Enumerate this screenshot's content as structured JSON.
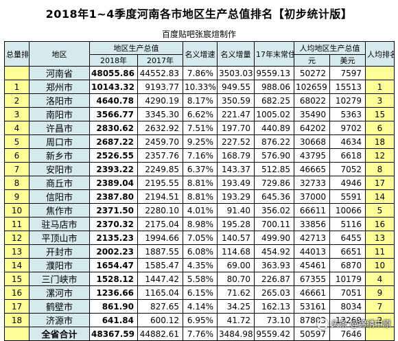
{
  "title": "2018年1~4季度河南各市地区生产总值排名【初步统计版】",
  "subtitle": "百度贴吧张宸煊制作",
  "headers": {
    "rank": "总量排名",
    "region": "地区",
    "gdp": "地区生产总值",
    "y2018": "2018年",
    "y2017": "2017年",
    "nominal_growth": "名义增速",
    "nominal_increase": "名义增量",
    "population": "17年末常住人口",
    "per_capita": "人均地区生产总值",
    "per_capita_yuan": "元",
    "per_capita_usd": "美元",
    "per_capita_rank": "人均排名"
  },
  "rows": [
    {
      "rank": "",
      "region": "河南省",
      "y2018": "48055.86",
      "y2017": "44552.83",
      "growth": "7.86%",
      "increase": "3503.03",
      "population": "9559.13",
      "pc_yuan": "50272",
      "pc_usd": "7597",
      "pc_rank": ""
    },
    {
      "rank": "1",
      "region": "郑州市",
      "y2018": "10143.32",
      "y2017": "9193.77",
      "growth": "10.33%",
      "increase": "949.55",
      "population": "988.06",
      "pc_yuan": "102659",
      "pc_usd": "15513",
      "pc_rank": "1"
    },
    {
      "rank": "2",
      "region": "洛阳市",
      "y2018": "4640.78",
      "y2017": "4290.19",
      "growth": "8.17%",
      "increase": "350.59",
      "population": "682.25",
      "pc_yuan": "68022",
      "pc_usd": "10279",
      "pc_rank": "3"
    },
    {
      "rank": "3",
      "region": "南阳市",
      "y2018": "3566.77",
      "y2017": "3345.30",
      "growth": "6.62%",
      "increase": "221.47",
      "population": "1005.02",
      "pc_yuan": "35490",
      "pc_usd": "5363",
      "pc_rank": "15"
    },
    {
      "rank": "4",
      "region": "许昌市",
      "y2018": "2830.62",
      "y2017": "2632.92",
      "growth": "7.51%",
      "increase": "197.70",
      "population": "440.89",
      "pc_yuan": "64202",
      "pc_usd": "9702",
      "pc_rank": "6"
    },
    {
      "rank": "5",
      "region": "周口市",
      "y2018": "2687.22",
      "y2017": "2459.70",
      "growth": "9.25%",
      "increase": "227.52",
      "population": "876.22",
      "pc_yuan": "30668",
      "pc_usd": "4634",
      "pc_rank": "18"
    },
    {
      "rank": "6",
      "region": "新乡市",
      "y2018": "2526.55",
      "y2017": "2357.76",
      "growth": "7.16%",
      "increase": "168.79",
      "population": "576.90",
      "pc_yuan": "43795",
      "pc_usd": "6618",
      "pc_rank": "12"
    },
    {
      "rank": "7",
      "region": "安阳市",
      "y2018": "2393.22",
      "y2017": "2249.85",
      "growth": "6.37%",
      "increase": "143.37",
      "population": "512.85",
      "pc_yuan": "46665",
      "pc_usd": "7052",
      "pc_rank": "8"
    },
    {
      "rank": "8",
      "region": "商丘市",
      "y2018": "2389.04",
      "y2017": "2195.55",
      "growth": "8.81%",
      "increase": "193.49",
      "population": "729.86",
      "pc_yuan": "32733",
      "pc_usd": "4946",
      "pc_rank": "17"
    },
    {
      "rank": "9",
      "region": "信阳市",
      "y2018": "2387.80",
      "y2017": "2194.51",
      "growth": "8.81%",
      "increase": "193.29",
      "population": "645.36",
      "pc_yuan": "37000",
      "pc_usd": "5591",
      "pc_rank": "14"
    },
    {
      "rank": "10",
      "region": "焦作市",
      "y2018": "2371.50",
      "y2017": "2280.10",
      "growth": "4.01%",
      "increase": "91.40",
      "population": "356.02",
      "pc_yuan": "66611",
      "pc_usd": "10066",
      "pc_rank": "5"
    },
    {
      "rank": "11",
      "region": "驻马店市",
      "y2018": "2370.32",
      "y2017": "2175.04",
      "growth": "8.98%",
      "increase": "195.28",
      "population": "700.11",
      "pc_yuan": "33856",
      "pc_usd": "5116",
      "pc_rank": "16"
    },
    {
      "rank": "12",
      "region": "平顶山市",
      "y2018": "2135.23",
      "y2017": "1994.66",
      "growth": "7.05%",
      "increase": "140.57",
      "population": "499.90",
      "pc_yuan": "42713",
      "pc_usd": "6455",
      "pc_rank": "13"
    },
    {
      "rank": "13",
      "region": "开封市",
      "y2018": "2002.23",
      "y2017": "1887.55",
      "growth": "6.08%",
      "increase": "114.68",
      "population": "454.92",
      "pc_yuan": "44013",
      "pc_usd": "6651",
      "pc_rank": "11"
    },
    {
      "rank": "14",
      "region": "濮阳市",
      "y2018": "1654.47",
      "y2017": "1585.47",
      "growth": "4.35%",
      "increase": "69.00",
      "population": "363.93",
      "pc_yuan": "45461",
      "pc_usd": "6870",
      "pc_rank": "10"
    },
    {
      "rank": "15",
      "region": "三门峡市",
      "y2018": "1528.12",
      "y2017": "1447.42",
      "growth": "5.58%",
      "increase": "80.70",
      "population": "226.87",
      "pc_yuan": "67355",
      "pc_usd": "10179",
      "pc_rank": "4"
    },
    {
      "rank": "16",
      "region": "漯河市",
      "y2018": "1236.66",
      "y2017": "1165.04",
      "growth": "6.15%",
      "increase": "71.62",
      "population": "265.03",
      "pc_yuan": "46661",
      "pc_usd": "7051",
      "pc_rank": "9"
    },
    {
      "rank": "17",
      "region": "鹤壁市",
      "y2018": "861.90",
      "y2017": "827.65",
      "growth": "4.14%",
      "increase": "34.25",
      "population": "162.13",
      "pc_yuan": "53161",
      "pc_usd": "8034",
      "pc_rank": "7"
    },
    {
      "rank": "18",
      "region": "济源市",
      "y2018": "641.84",
      "y2017": "600.12",
      "growth": "6.95%",
      "increase": "41.72",
      "population": "73.10",
      "pc_yuan": "87803",
      "pc_usd": "13269",
      "pc_rank": "2"
    },
    {
      "rank": "",
      "region": "全省合计",
      "y2018": "48367.59",
      "y2017": "44882.61",
      "growth": "7.76%",
      "increase": "3484.98",
      "population": "9559.42",
      "pc_yuan": "50597",
      "pc_usd": "7646",
      "pc_rank": ""
    }
  ],
  "watermark": "头条 @锦绣中原",
  "colors": {
    "header_bg": "#d6e9ee",
    "rank_bg": "#ffff99"
  }
}
